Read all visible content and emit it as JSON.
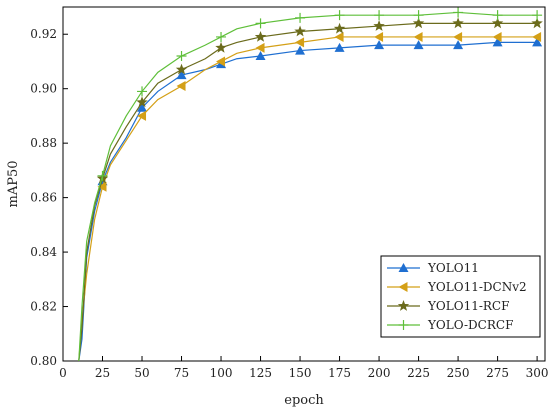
{
  "chart_data": {
    "type": "line",
    "xlabel": "epoch",
    "ylabel": "mAP50",
    "xlim": [
      0,
      305
    ],
    "ylim": [
      0.8,
      0.93
    ],
    "x_ticks": [
      0,
      25,
      50,
      75,
      100,
      125,
      150,
      175,
      200,
      225,
      250,
      275,
      300
    ],
    "y_ticks": [
      0.8,
      0.82,
      0.84,
      0.86,
      0.88,
      0.9,
      0.92
    ],
    "x_tick_labels": [
      "0",
      "25",
      "50",
      "75",
      "100",
      "125",
      "150",
      "175",
      "200",
      "225",
      "250",
      "275",
      "300"
    ],
    "y_tick_labels": [
      "0.80",
      "0.82",
      "0.84",
      "0.86",
      "0.88",
      "0.90",
      "0.92"
    ],
    "grid": false,
    "legend_position": "bottom-right",
    "series": [
      {
        "name": "YOLO11",
        "color": "#1f6fd1",
        "marker": "triangle-up",
        "x": [
          10,
          12,
          15,
          20,
          25,
          30,
          40,
          50,
          60,
          75,
          90,
          100,
          110,
          125,
          150,
          175,
          200,
          225,
          250,
          275,
          300
        ],
        "y": [
          0.8,
          0.808,
          0.838,
          0.855,
          0.866,
          0.873,
          0.882,
          0.893,
          0.899,
          0.905,
          0.907,
          0.909,
          0.911,
          0.912,
          0.914,
          0.915,
          0.916,
          0.916,
          0.916,
          0.917,
          0.917
        ]
      },
      {
        "name": "YOLO11-DCNv2",
        "color": "#d4a017",
        "marker": "triangle-left",
        "x": [
          10,
          12,
          15,
          20,
          25,
          30,
          40,
          50,
          60,
          75,
          90,
          100,
          110,
          125,
          150,
          175,
          200,
          225,
          250,
          275,
          300
        ],
        "y": [
          0.8,
          0.815,
          0.832,
          0.852,
          0.864,
          0.872,
          0.881,
          0.89,
          0.896,
          0.901,
          0.907,
          0.91,
          0.913,
          0.915,
          0.917,
          0.919,
          0.919,
          0.919,
          0.919,
          0.919,
          0.919
        ]
      },
      {
        "name": "YOLO11-RCF",
        "color": "#6b6b1c",
        "marker": "star",
        "x": [
          10,
          12,
          15,
          20,
          25,
          30,
          40,
          50,
          60,
          75,
          90,
          100,
          110,
          125,
          150,
          175,
          200,
          225,
          250,
          275,
          300
        ],
        "y": [
          0.8,
          0.812,
          0.84,
          0.857,
          0.867,
          0.876,
          0.886,
          0.895,
          0.902,
          0.907,
          0.911,
          0.915,
          0.917,
          0.919,
          0.921,
          0.922,
          0.923,
          0.924,
          0.924,
          0.924,
          0.924
        ]
      },
      {
        "name": "YOLO-DCRCF",
        "color": "#5fbf3a",
        "marker": "plus",
        "x": [
          10,
          12,
          15,
          20,
          25,
          30,
          40,
          50,
          60,
          75,
          90,
          100,
          110,
          125,
          150,
          175,
          200,
          225,
          250,
          275,
          300
        ],
        "y": [
          0.8,
          0.82,
          0.844,
          0.858,
          0.868,
          0.879,
          0.89,
          0.899,
          0.906,
          0.912,
          0.916,
          0.919,
          0.922,
          0.924,
          0.926,
          0.927,
          0.927,
          0.927,
          0.928,
          0.927,
          0.927
        ]
      }
    ]
  }
}
